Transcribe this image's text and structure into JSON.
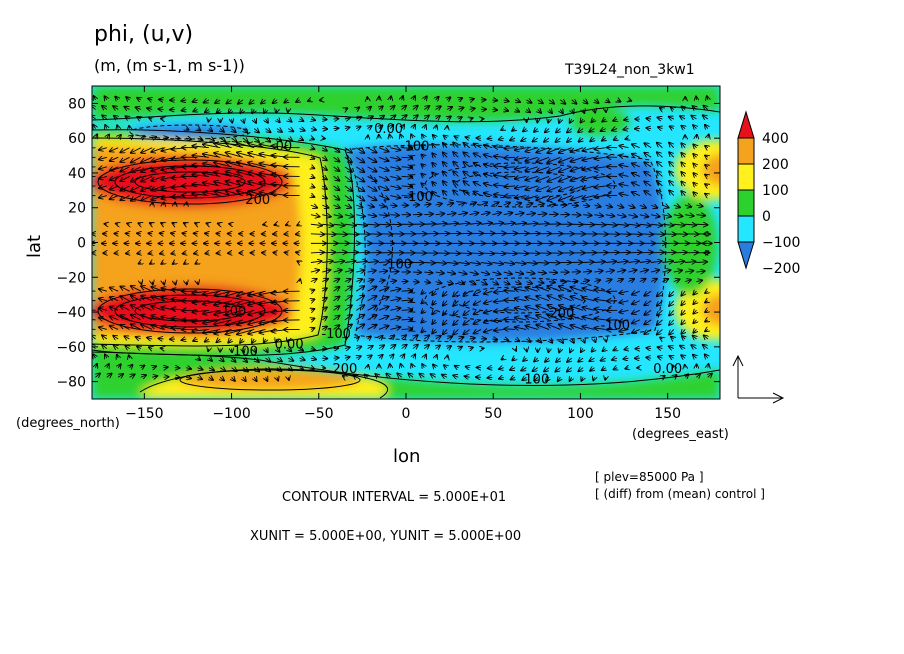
{
  "header": {
    "title": "phi, (u,v)",
    "subtitle": "(m, (m s-1, m s-1))",
    "run_name": "T39L24_non_3kw1"
  },
  "footer": {
    "contour_interval": "CONTOUR INTERVAL = 5.000E+01",
    "vector_units": "XUNIT = 5.000E+00, YUNIT = 5.000E+00",
    "plev": "[ plev=85000 Pa ]",
    "diff": "[ (diff) from (mean) control ]"
  },
  "chart_data": {
    "type": "heatmap",
    "title": "phi, (u,v)",
    "subtitle": "(m, (m s-1, m s-1))",
    "xlabel": "lon",
    "ylabel": "lat",
    "x_unit_label": "(degrees_east)",
    "y_unit_label": "(degrees_north)",
    "xlim": [
      -180,
      180
    ],
    "ylim": [
      -90,
      90
    ],
    "x_ticks": [
      -150,
      -100,
      -50,
      0,
      50,
      100,
      150
    ],
    "y_ticks": [
      80,
      60,
      40,
      20,
      0,
      -20,
      -40,
      -60,
      -80
    ],
    "colorbar": {
      "levels": [
        -200,
        -100,
        0,
        100,
        200,
        400
      ],
      "labels": [
        "400",
        "200",
        "100",
        "0",
        "−100",
        "−200"
      ],
      "colors": [
        "#e8101a",
        "#f5a21e",
        "#fff01e",
        "#2dd12d",
        "#24e6ff",
        "#2a7de0"
      ]
    },
    "contour_labels": [
      {
        "text": "0.00",
        "lon": -10,
        "lat": 63
      },
      {
        "text": "-100",
        "lon": 5,
        "lat": 53
      },
      {
        "text": "-100",
        "lon": 7,
        "lat": 24
      },
      {
        "text": "-100",
        "lon": -5,
        "lat": -15
      },
      {
        "text": "-100",
        "lon": -40,
        "lat": -55
      },
      {
        "text": "0.00",
        "lon": -67,
        "lat": -61
      },
      {
        "text": "100",
        "lon": -92,
        "lat": -65
      },
      {
        "text": "200",
        "lon": -35,
        "lat": -75
      },
      {
        "text": "100",
        "lon": 75,
        "lat": -81
      },
      {
        "text": "0.00",
        "lon": 150,
        "lat": -75
      },
      {
        "text": "-200",
        "lon": 88,
        "lat": -43
      },
      {
        "text": "-100",
        "lon": 120,
        "lat": -50
      },
      {
        "text": "-100",
        "lon": -100,
        "lat": -42
      },
      {
        "text": "200",
        "lon": -85,
        "lat": 22
      },
      {
        "text": "00",
        "lon": -70,
        "lat": 53
      }
    ]
  }
}
